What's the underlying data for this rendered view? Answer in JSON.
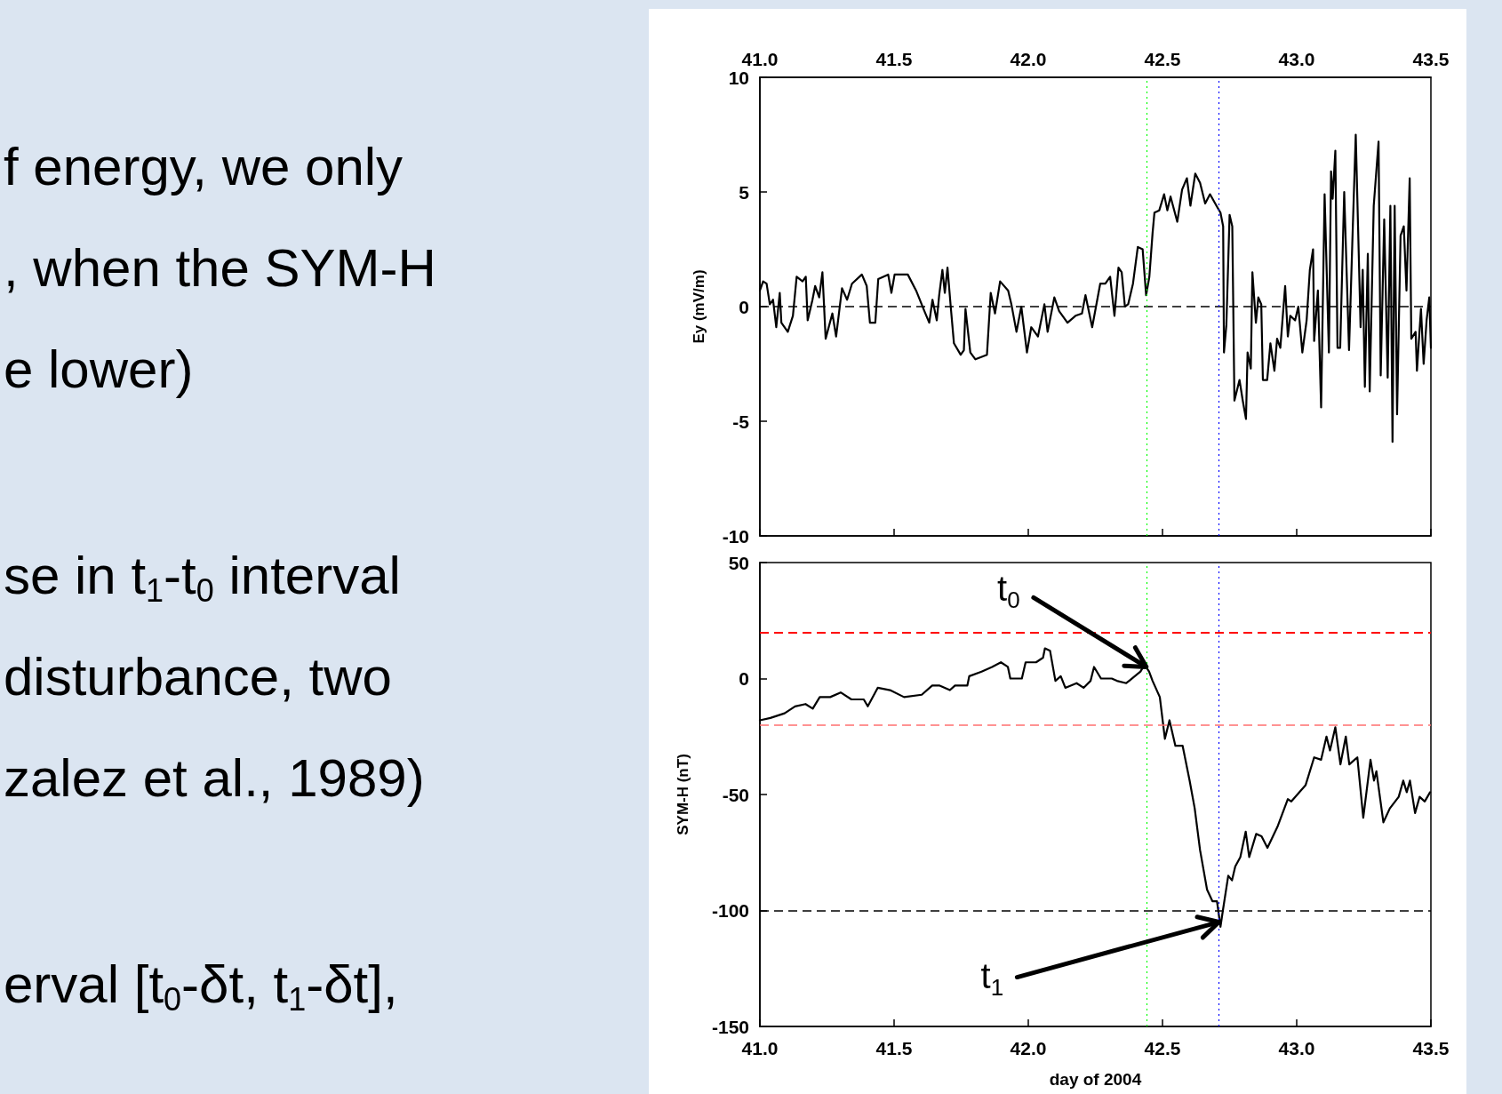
{
  "chart_data": [
    {
      "type": "other",
      "annotations": [
        "f energy, we only",
        ", when the SYM-H",
        "e lower)",
        "se in t$_{1}$-t$_{0}$ interval",
        "disturbance, two",
        "zalez et al., 1989)",
        "erval [t$_{0}$-δt, t$_{1}$-δt],"
      ]
    },
    {
      "type": "line",
      "ylabel": "Ey (mV/m)",
      "xlim": [
        41,
        43.5
      ],
      "xticks": [
        {
          "value": 41,
          "label": "41.0"
        },
        41.5,
        {
          "value": 42,
          "label": "42.0"
        },
        42.5,
        {
          "value": 43,
          "label": "43.0"
        },
        43.5
      ],
      "ylim": [
        -10,
        10
      ],
      "yticks": [
        10,
        5,
        0,
        -5,
        -10
      ],
      "ref_lines": [
        {
          "axis": "y",
          "value": 0,
          "color": "#000000",
          "line_style": "dashed"
        },
        {
          "axis": "x",
          "value": 42.44,
          "color": "#00ff00",
          "line_style": "dotted"
        },
        {
          "axis": "x",
          "value": 42.71,
          "color": "#0000ff",
          "line_style": "dotted"
        }
      ],
      "series": [
        {
          "color": "#000000",
          "x": [
            41.0,
            41.012,
            41.025,
            41.037,
            41.049,
            41.061,
            41.074,
            41.08,
            41.104,
            41.123,
            41.137,
            41.159,
            41.171,
            41.178,
            41.196,
            41.206,
            41.221,
            41.233,
            41.245,
            41.27,
            41.284,
            41.306,
            41.325,
            41.343,
            41.38,
            41.398,
            41.41,
            41.43,
            41.441,
            41.478,
            41.49,
            41.502,
            41.551,
            41.582,
            41.613,
            41.631,
            41.643,
            41.659,
            41.668,
            41.68,
            41.689,
            41.699,
            41.711,
            41.723,
            41.748,
            41.76,
            41.766,
            41.784,
            41.803,
            41.846,
            41.86,
            41.876,
            41.895,
            41.925,
            41.937,
            41.956,
            41.974,
            41.995,
            42.011,
            42.036,
            42.06,
            42.072,
            42.097,
            42.115,
            42.146,
            42.176,
            42.2,
            42.213,
            42.238,
            42.268,
            42.287,
            42.305,
            42.321,
            42.336,
            42.348,
            42.36,
            42.372,
            42.39,
            42.408,
            42.426,
            42.439,
            42.451,
            42.463,
            42.47,
            42.488,
            42.506,
            42.518,
            42.53,
            42.555,
            42.573,
            42.591,
            42.604,
            42.622,
            42.64,
            42.659,
            42.677,
            42.701,
            42.716,
            42.726,
            42.729,
            42.738,
            42.75,
            42.76,
            42.768,
            42.787,
            42.799,
            42.811,
            42.817,
            42.829,
            42.835,
            42.848,
            42.857,
            42.868,
            42.874,
            42.89,
            42.902,
            42.917,
            42.927,
            42.939,
            42.957,
            42.967,
            42.976,
            42.994,
            43.006,
            43.021,
            43.037,
            43.049,
            43.061,
            43.065,
            43.079,
            43.091,
            43.104,
            43.12,
            43.128,
            43.134,
            43.144,
            43.152,
            43.162,
            43.177,
            43.195,
            43.207,
            43.22,
            43.238,
            43.246,
            43.254,
            43.265,
            43.272,
            43.287,
            43.305,
            43.313,
            43.326,
            43.339,
            43.349,
            43.357,
            43.365,
            43.374,
            43.387,
            43.399,
            43.409,
            43.421,
            43.427,
            43.443,
            43.448,
            43.463,
            43.473,
            43.484,
            43.494,
            43.5
          ],
          "values": [
            0.7,
            1.1,
            1.0,
            0.1,
            0.3,
            -0.9,
            0.6,
            -0.7,
            -1.1,
            -0.4,
            1.3,
            1.1,
            1.3,
            -0.6,
            0.3,
            0.9,
            0.4,
            1.5,
            -1.4,
            -0.3,
            -1.3,
            0.8,
            0.3,
            1.0,
            1.4,
            0.9,
            -0.7,
            -0.7,
            1.2,
            1.4,
            0.6,
            1.4,
            1.4,
            0.7,
            -0.2,
            -0.7,
            0.3,
            -0.6,
            0.5,
            1.6,
            0.6,
            1.7,
            0.0,
            -1.6,
            -2.1,
            -1.9,
            -0.1,
            -2.0,
            -2.3,
            -2.1,
            0.6,
            -0.3,
            1.1,
            0.7,
            0.1,
            -1.1,
            0.0,
            -2.0,
            -0.9,
            -1.3,
            0.1,
            -1.1,
            0.4,
            -0.2,
            -0.7,
            -0.4,
            -0.3,
            0.5,
            -0.9,
            1.0,
            1.0,
            1.3,
            -0.4,
            1.7,
            1.5,
            0.0,
            0.1,
            1.0,
            2.6,
            2.5,
            0.5,
            1.3,
            3.2,
            4.1,
            4.2,
            4.9,
            4.2,
            4.8,
            3.7,
            5.1,
            5.6,
            4.4,
            5.8,
            5.4,
            4.5,
            4.9,
            4.4,
            4.1,
            3.5,
            -2.0,
            -0.8,
            4.0,
            3.5,
            -4.1,
            -3.2,
            -4.1,
            -4.9,
            -2.0,
            -2.7,
            1.5,
            -0.7,
            0.4,
            0.1,
            -3.2,
            -3.2,
            -1.6,
            -2.8,
            -1.4,
            -1.8,
            0.9,
            -1.3,
            -0.4,
            -0.6,
            0.0,
            -2.0,
            -0.6,
            1.6,
            2.5,
            -1.5,
            0.7,
            -4.4,
            4.9,
            -2.0,
            5.9,
            4.7,
            6.8,
            -1.8,
            -1.8,
            5.0,
            -1.9,
            2.7,
            7.5,
            -0.9,
            1.6,
            -3.5,
            2.3,
            -3.7,
            4.4,
            7.2,
            -3.0,
            3.8,
            -3.1,
            4.4,
            -5.9,
            4.4,
            -4.7,
            3.1,
            3.5,
            0.7,
            5.6,
            -1.4,
            -1.1,
            -2.8,
            -0.1,
            -2.5,
            -0.6,
            0.4,
            -1.8
          ]
        }
      ]
    },
    {
      "type": "line",
      "ylabel": "SYM-H (nT)",
      "xlabel": "day of 2004",
      "xlim": [
        41,
        43.5
      ],
      "xticks": [
        {
          "value": 41,
          "label": "41.0"
        },
        41.5,
        {
          "value": 42,
          "label": "42.0"
        },
        42.5,
        {
          "value": 43,
          "label": "43.0"
        },
        43.5
      ],
      "ylim": [
        -150,
        50
      ],
      "yticks": [
        50,
        0,
        -50,
        -100,
        -150
      ],
      "ref_lines": [
        {
          "axis": "y",
          "value": 20,
          "color": "#ff0000",
          "line_style": "dashed"
        },
        {
          "axis": "y",
          "value": -20,
          "color": "#ff7070",
          "line_style": "dashed"
        },
        {
          "axis": "y",
          "value": -100,
          "color": "#000000",
          "line_style": "dashed"
        },
        {
          "axis": "x",
          "value": 42.44,
          "color": "#00ff00",
          "line_style": "dotted"
        },
        {
          "axis": "x",
          "value": 42.71,
          "color": "#0000ff",
          "line_style": "dotted"
        }
      ],
      "annotations": [
        {
          "text": "t$_{0}$",
          "x": 42.44,
          "y": 5
        },
        {
          "text": "t$_{1}$",
          "x": 42.71,
          "y": -105
        }
      ],
      "series": [
        {
          "color": "#000000",
          "x": [
            41.0,
            41.039,
            41.092,
            41.131,
            41.17,
            41.197,
            41.223,
            41.262,
            41.301,
            41.341,
            41.387,
            41.402,
            41.439,
            41.485,
            41.537,
            41.603,
            41.642,
            41.668,
            41.708,
            41.727,
            41.773,
            41.78,
            41.826,
            41.865,
            41.898,
            41.924,
            41.933,
            41.976,
            41.99,
            42.029,
            42.055,
            42.062,
            42.081,
            42.101,
            42.121,
            42.138,
            42.18,
            42.206,
            42.232,
            42.245,
            42.271,
            42.311,
            42.33,
            42.365,
            42.418,
            42.433,
            42.45,
            42.463,
            42.49,
            42.509,
            42.526,
            42.548,
            42.575,
            42.601,
            42.62,
            42.64,
            42.666,
            42.686,
            42.703,
            42.716,
            42.725,
            42.745,
            42.759,
            42.771,
            42.79,
            42.81,
            42.823,
            42.849,
            42.869,
            42.891,
            42.928,
            42.967,
            42.98,
            43.033,
            43.065,
            43.091,
            43.111,
            43.124,
            43.144,
            43.163,
            43.183,
            43.196,
            43.226,
            43.248,
            43.275,
            43.288,
            43.297,
            43.323,
            43.347,
            43.38,
            43.397,
            43.41,
            43.422,
            43.441,
            43.458,
            43.477,
            43.497
          ],
          "values": [
            -18,
            -17,
            -15,
            -12,
            -11,
            -13,
            -8,
            -8,
            -6,
            -9,
            -9,
            -12,
            -4,
            -5,
            -8,
            -7,
            -3,
            -3,
            -5,
            -3,
            -3,
            1,
            3,
            5,
            7,
            5,
            0,
            0,
            7,
            7,
            9,
            13,
            12,
            -1,
            1,
            -4,
            -2,
            -4,
            -1,
            5,
            0,
            0,
            -1,
            -2,
            3,
            6,
            3,
            -1,
            -8,
            -26,
            -18,
            -29,
            -29,
            -44,
            -56,
            -74,
            -91,
            -96,
            -96,
            -107,
            -100,
            -85,
            -87,
            -81,
            -77,
            -66,
            -77,
            -67,
            -68,
            -73,
            -64,
            -52,
            -53,
            -46,
            -34,
            -35,
            -25,
            -31,
            -21,
            -37,
            -25,
            -37,
            -34,
            -60,
            -35,
            -44,
            -40,
            -62,
            -56,
            -51,
            -44,
            -49,
            -44,
            -58,
            -51,
            -53,
            -49
          ]
        }
      ]
    }
  ]
}
